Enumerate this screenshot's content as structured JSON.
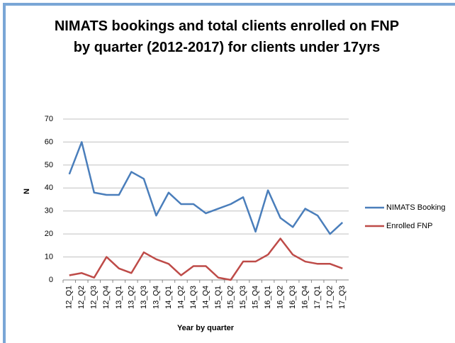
{
  "chart_data": {
    "type": "line",
    "title": "NIMATS bookings and total clients enrolled on FNP by quarter (2012-2017) for clients under 17yrs",
    "x_label": "Year by quarter",
    "y_label": "N",
    "categories": [
      "12_Q1",
      "12_Q2",
      "12_Q3",
      "12_Q4",
      "13_Q1",
      "13_Q2",
      "13_Q3",
      "13_Q4",
      "14_Q1",
      "14_Q2",
      "14_Q3",
      "14_Q4",
      "15_Q1",
      "15_Q2",
      "15_Q3",
      "15_Q4",
      "16_Q1",
      "16_Q2",
      "16_Q3",
      "16_Q4",
      "17_Q1",
      "17_Q2",
      "17_Q3"
    ],
    "series": [
      {
        "name": "NIMATS Booking",
        "color": "#4a7ebb",
        "values": [
          46,
          60,
          38,
          37,
          37,
          47,
          44,
          28,
          38,
          33,
          33,
          29,
          31,
          33,
          36,
          21,
          39,
          27,
          23,
          31,
          28,
          20,
          25
        ]
      },
      {
        "name": "Enrolled FNP",
        "color": "#be4b48",
        "values": [
          2,
          3,
          1,
          10,
          5,
          3,
          12,
          9,
          7,
          2,
          6,
          6,
          1,
          0,
          8,
          8,
          11,
          18,
          11,
          8,
          7,
          7,
          5
        ]
      }
    ],
    "ylim": [
      0,
      70
    ],
    "yticks": [
      0,
      10,
      20,
      30,
      40,
      50,
      60,
      70
    ],
    "grid": true,
    "legend": "right"
  }
}
